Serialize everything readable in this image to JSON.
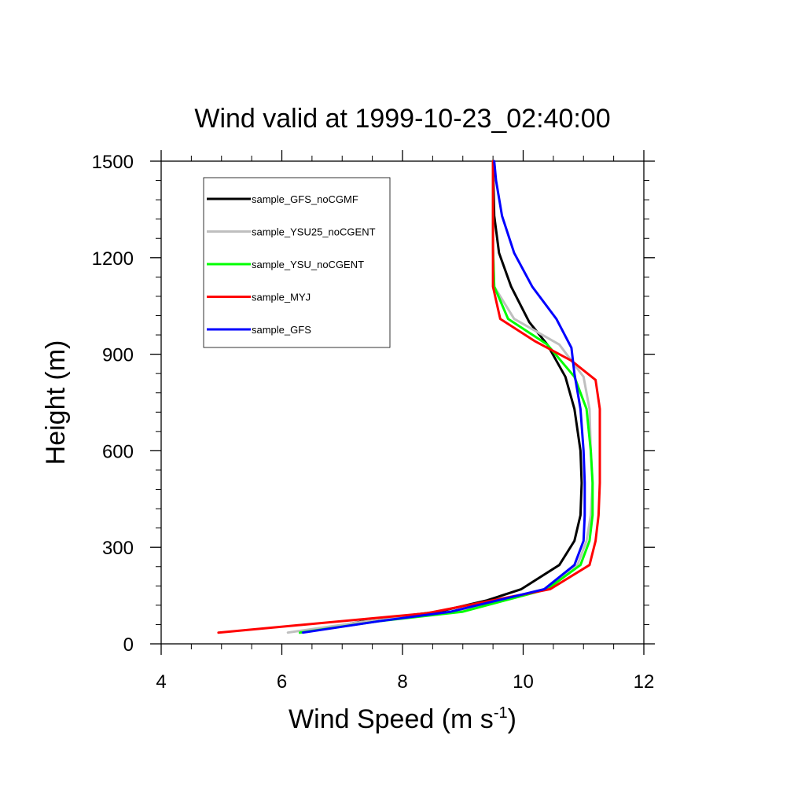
{
  "chart_data": {
    "type": "line",
    "title": "Wind valid at 1999-10-23_02:40:00",
    "xlabel": {
      "main": "Wind Speed (m s",
      "superscript": "-1",
      "close": ")"
    },
    "ylabel": "Height (m)",
    "xlim": [
      4,
      12
    ],
    "ylim": [
      0,
      1500
    ],
    "xticks": [
      4,
      6,
      8,
      10,
      12
    ],
    "xtick_labels": [
      "4",
      "6",
      "8",
      "10",
      "12"
    ],
    "yticks": [
      0,
      300,
      600,
      900,
      1200,
      1500
    ],
    "ytick_labels": [
      "0",
      "300",
      "600",
      "900",
      "1200",
      "1500"
    ],
    "grid": false,
    "legend_position": "top-left",
    "series": [
      {
        "name": "sample_GFS_noCGMF",
        "color": "#000000",
        "points": [
          [
            6.3,
            35
          ],
          [
            7.5,
            75
          ],
          [
            8.6,
            100
          ],
          [
            9.4,
            135
          ],
          [
            9.97,
            170
          ],
          [
            10.6,
            245
          ],
          [
            10.85,
            320
          ],
          [
            10.95,
            400
          ],
          [
            10.97,
            500
          ],
          [
            10.95,
            600
          ],
          [
            10.85,
            730
          ],
          [
            10.7,
            830
          ],
          [
            10.4,
            930
          ],
          [
            10.1,
            1000
          ],
          [
            9.8,
            1110
          ],
          [
            9.6,
            1215
          ],
          [
            9.52,
            1330
          ],
          [
            9.5,
            1500
          ]
        ]
      },
      {
        "name": "sample_YSU25_noCGENT",
        "color": "#bfbfbf",
        "points": [
          [
            6.1,
            35
          ],
          [
            7.4,
            70
          ],
          [
            8.8,
            98
          ],
          [
            10.35,
            170
          ],
          [
            10.9,
            245
          ],
          [
            11.05,
            320
          ],
          [
            11.12,
            400
          ],
          [
            11.15,
            500
          ],
          [
            11.12,
            600
          ],
          [
            11.1,
            730
          ],
          [
            11.0,
            830
          ],
          [
            10.6,
            930
          ],
          [
            9.85,
            1010
          ],
          [
            9.52,
            1110
          ],
          [
            9.5,
            1230
          ],
          [
            9.5,
            1500
          ]
        ]
      },
      {
        "name": "sample_YSU_noCGENT",
        "color": "#00ff00",
        "points": [
          [
            6.3,
            35
          ],
          [
            7.6,
            70
          ],
          [
            9.0,
            100
          ],
          [
            10.4,
            170
          ],
          [
            10.95,
            245
          ],
          [
            11.1,
            320
          ],
          [
            11.15,
            400
          ],
          [
            11.15,
            500
          ],
          [
            11.12,
            600
          ],
          [
            11.05,
            730
          ],
          [
            10.85,
            830
          ],
          [
            10.4,
            930
          ],
          [
            9.75,
            1010
          ],
          [
            9.52,
            1110
          ],
          [
            9.5,
            1230
          ],
          [
            9.5,
            1500
          ]
        ]
      },
      {
        "name": "sample_MYJ",
        "color": "#ff0000",
        "points": [
          [
            4.95,
            35
          ],
          [
            8.4,
            95
          ],
          [
            10.45,
            170
          ],
          [
            11.1,
            245
          ],
          [
            11.2,
            320
          ],
          [
            11.25,
            400
          ],
          [
            11.27,
            500
          ],
          [
            11.27,
            600
          ],
          [
            11.27,
            730
          ],
          [
            11.2,
            820
          ],
          [
            10.8,
            880
          ],
          [
            10.2,
            940
          ],
          [
            9.62,
            1010
          ],
          [
            9.5,
            1110
          ],
          [
            9.5,
            1230
          ],
          [
            9.5,
            1500
          ]
        ]
      },
      {
        "name": "sample_GFS",
        "color": "#0000ff",
        "points": [
          [
            6.35,
            35
          ],
          [
            7.6,
            70
          ],
          [
            8.8,
            100
          ],
          [
            10.35,
            170
          ],
          [
            10.85,
            245
          ],
          [
            11.0,
            320
          ],
          [
            11.02,
            400
          ],
          [
            11.02,
            500
          ],
          [
            11.0,
            600
          ],
          [
            10.95,
            730
          ],
          [
            10.85,
            840
          ],
          [
            10.8,
            920
          ],
          [
            10.55,
            1010
          ],
          [
            10.15,
            1110
          ],
          [
            9.85,
            1215
          ],
          [
            9.65,
            1330
          ],
          [
            9.55,
            1440
          ],
          [
            9.52,
            1500
          ]
        ]
      }
    ]
  }
}
